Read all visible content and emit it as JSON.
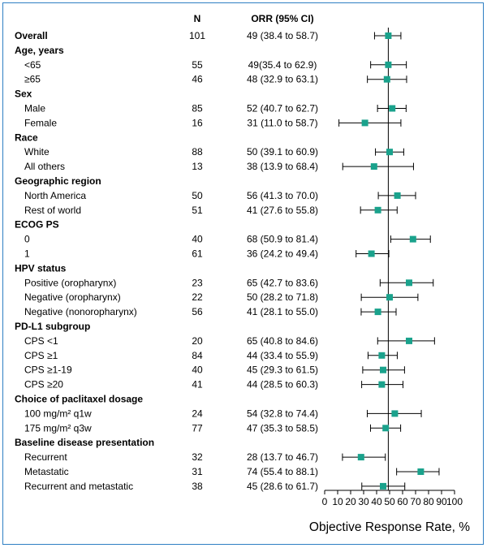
{
  "chart_data": {
    "type": "forest",
    "header": {
      "n": "N",
      "orr": "ORR (95% CI)"
    },
    "xlabel": "Objective Response Rate, %",
    "xlim": [
      0,
      100
    ],
    "xticks": [
      0,
      10,
      20,
      30,
      40,
      50,
      60,
      70,
      80,
      90,
      100
    ],
    "reference_line": 49,
    "marker_color": "#1aa28c",
    "border_color": "#2f7fc3",
    "rows": [
      {
        "kind": "item",
        "bold": true,
        "label": "Overall",
        "n": "101",
        "ci_text": "49 (38.4 to 58.7)",
        "est": 49,
        "lo": 38.4,
        "hi": 58.7
      },
      {
        "kind": "group",
        "label": "Age, years"
      },
      {
        "kind": "item",
        "label": "<65",
        "n": "55",
        "ci_text": "49(35.4 to 62.9)",
        "est": 49,
        "lo": 35.4,
        "hi": 62.9
      },
      {
        "kind": "item",
        "label": "≥65",
        "n": "46",
        "ci_text": "48 (32.9 to 63.1)",
        "est": 48,
        "lo": 32.9,
        "hi": 63.1
      },
      {
        "kind": "group",
        "label": "Sex"
      },
      {
        "kind": "item",
        "label": "Male",
        "n": "85",
        "ci_text": "52 (40.7 to 62.7)",
        "est": 52,
        "lo": 40.7,
        "hi": 62.7
      },
      {
        "kind": "item",
        "label": "Female",
        "n": "16",
        "ci_text": "31 (11.0 to 58.7)",
        "est": 31,
        "lo": 11.0,
        "hi": 58.7
      },
      {
        "kind": "group",
        "label": "Race"
      },
      {
        "kind": "item",
        "label": "White",
        "n": "88",
        "ci_text": "50 (39.1 to 60.9)",
        "est": 50,
        "lo": 39.1,
        "hi": 60.9
      },
      {
        "kind": "item",
        "label": "All others",
        "n": "13",
        "ci_text": "38 (13.9 to 68.4)",
        "est": 38,
        "lo": 13.9,
        "hi": 68.4
      },
      {
        "kind": "group",
        "label": "Geographic region"
      },
      {
        "kind": "item",
        "label": "North America",
        "n": "50",
        "ci_text": "56 (41.3 to 70.0)",
        "est": 56,
        "lo": 41.3,
        "hi": 70.0
      },
      {
        "kind": "item",
        "label": "Rest of world",
        "n": "51",
        "ci_text": "41 (27.6 to 55.8)",
        "est": 41,
        "lo": 27.6,
        "hi": 55.8
      },
      {
        "kind": "group",
        "label": "ECOG PS"
      },
      {
        "kind": "item",
        "label": "0",
        "n": "40",
        "ci_text": "68 (50.9 to 81.4)",
        "est": 68,
        "lo": 50.9,
        "hi": 81.4
      },
      {
        "kind": "item",
        "label": "1",
        "n": "61",
        "ci_text": "36 (24.2 to 49.4)",
        "est": 36,
        "lo": 24.2,
        "hi": 49.4
      },
      {
        "kind": "group",
        "label": "HPV status"
      },
      {
        "kind": "item",
        "label": "Positive (oropharynx)",
        "n": "23",
        "ci_text": "65 (42.7 to 83.6)",
        "est": 65,
        "lo": 42.7,
        "hi": 83.6
      },
      {
        "kind": "item",
        "label": "Negative (oropharynx)",
        "n": "22",
        "ci_text": "50 (28.2 to 71.8)",
        "est": 50,
        "lo": 28.2,
        "hi": 71.8
      },
      {
        "kind": "item",
        "label": "Negative (nonoropharynx)",
        "n": "56",
        "ci_text": "41 (28.1 to 55.0)",
        "est": 41,
        "lo": 28.1,
        "hi": 55.0
      },
      {
        "kind": "group",
        "label": "PD-L1 subgroup"
      },
      {
        "kind": "item",
        "label": "CPS <1",
        "n": "20",
        "ci_text": "65 (40.8 to 84.6)",
        "est": 65,
        "lo": 40.8,
        "hi": 84.6
      },
      {
        "kind": "item",
        "label": "CPS ≥1",
        "n": "84",
        "ci_text": "44 (33.4 to 55.9)",
        "est": 44,
        "lo": 33.4,
        "hi": 55.9
      },
      {
        "kind": "item",
        "label": "CPS ≥1-19",
        "n": "40",
        "ci_text": "45 (29.3 to 61.5)",
        "est": 45,
        "lo": 29.3,
        "hi": 61.5
      },
      {
        "kind": "item",
        "label": "CPS ≥20",
        "n": "41",
        "ci_text": "44 (28.5 to 60.3)",
        "est": 44,
        "lo": 28.5,
        "hi": 60.3
      },
      {
        "kind": "group",
        "label": "Choice of paclitaxel dosage"
      },
      {
        "kind": "item",
        "label": "100 mg/m² q1w",
        "n": "24",
        "ci_text": "54 (32.8 to 74.4)",
        "est": 54,
        "lo": 32.8,
        "hi": 74.4
      },
      {
        "kind": "item",
        "label": "175 mg/m² q3w",
        "n": "77",
        "ci_text": "47 (35.3 to 58.5)",
        "est": 47,
        "lo": 35.3,
        "hi": 58.5
      },
      {
        "kind": "group",
        "label": "Baseline disease presentation"
      },
      {
        "kind": "item",
        "label": "Recurrent",
        "n": "32",
        "ci_text": "28 (13.7 to 46.7)",
        "est": 28,
        "lo": 13.7,
        "hi": 46.7
      },
      {
        "kind": "item",
        "label": "Metastatic",
        "n": "31",
        "ci_text": "74 (55.4 to 88.1)",
        "est": 74,
        "lo": 55.4,
        "hi": 88.1
      },
      {
        "kind": "item",
        "label": "Recurrent and metastatic",
        "n": "38",
        "ci_text": "45 (28.6 to 61.7)",
        "est": 45,
        "lo": 28.6,
        "hi": 61.7
      }
    ]
  }
}
